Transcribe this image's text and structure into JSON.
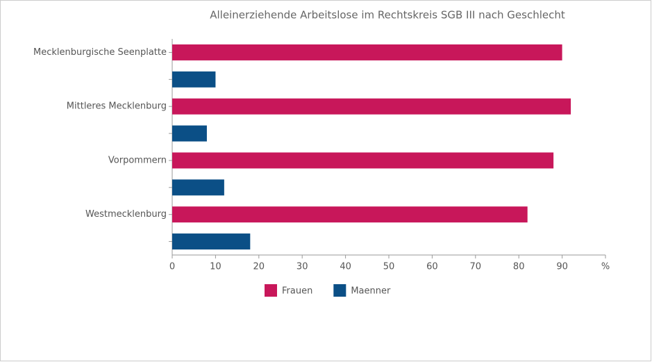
{
  "chart_data": {
    "type": "bar",
    "orientation": "horizontal",
    "title": "Alleinerziehende Arbeitslose im Rechtskreis SGB III nach Geschlecht",
    "categories": [
      "Mecklenburgische Seenplatte",
      "Mittleres Mecklenburg",
      "Vorpommern",
      "Westmecklenburg"
    ],
    "series": [
      {
        "name": "Frauen",
        "color": "#c8175a",
        "values": [
          90,
          92,
          88,
          82
        ]
      },
      {
        "name": "Maenner",
        "color": "#0b4f86",
        "values": [
          10,
          8,
          12,
          18
        ]
      }
    ],
    "xlim": [
      0,
      100
    ],
    "xticks": [
      0,
      10,
      20,
      30,
      40,
      50,
      60,
      70,
      80,
      90,
      {
        "value": 100,
        "label": "%"
      }
    ],
    "legend": "bottom"
  }
}
